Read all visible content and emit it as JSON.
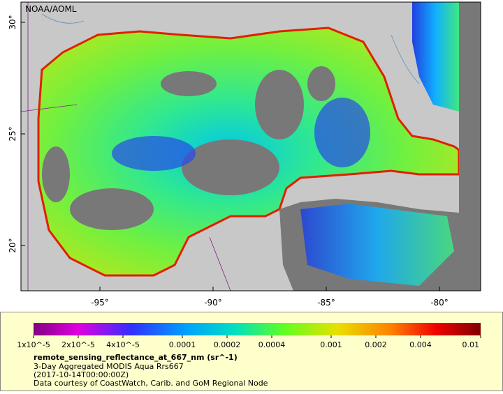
{
  "map": {
    "credit": "NOAA/AOML",
    "lat_tick_labels": [
      "30°",
      "25°",
      "20°"
    ],
    "lon_tick_labels": [
      "-95°",
      "-90°",
      "-85°",
      "-80°"
    ]
  },
  "legend": {
    "colorbar_labels": [
      "1x10^-5",
      "2x10^-5",
      "4x10^-5",
      "0.0001",
      "0.0002",
      "0.0004",
      "0.001",
      "0.002",
      "0.004",
      "0.01"
    ],
    "variable": "remote_sensing_reflectance_at_667_nm (sr^-1)",
    "description": "3-Day Aggregated MODIS Aqua Rrs667",
    "time": "(2017-10-14T00:00:00Z)",
    "source": "Data courtesy of CoastWatch, Carib. and GoM Regional Node"
  }
}
